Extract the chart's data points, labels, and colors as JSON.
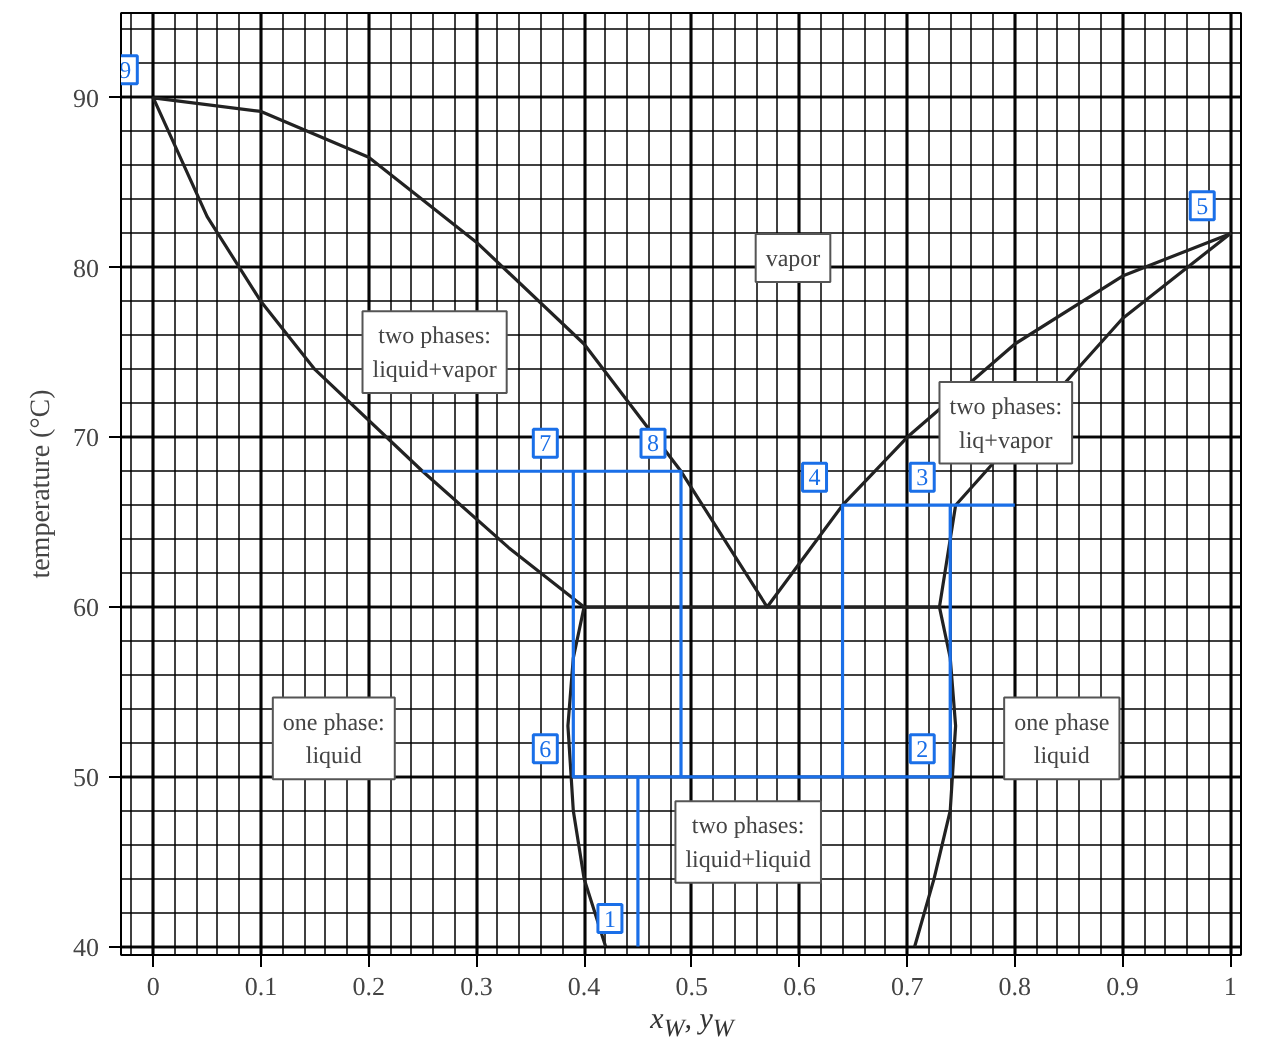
{
  "chart_data": {
    "type": "line",
    "xlabel": "x$_{W}$, y$_{W}$",
    "ylabel": "temperature (°C)",
    "xlim": [
      -0.03,
      1.01
    ],
    "ylim": [
      39.5,
      95
    ],
    "xticks": [
      0,
      0.1,
      0.2,
      0.3,
      0.4,
      0.5,
      0.6,
      0.7,
      0.8,
      0.9,
      1
    ],
    "yticks": [
      40,
      50,
      60,
      70,
      80,
      90
    ],
    "grid": true,
    "series": [
      {
        "type": "line",
        "color": "#222222",
        "x": [
          0.42,
          0.4,
          0.39,
          0.385,
          0.39,
          0.4,
          0.33,
          0.25,
          0.15,
          0.1,
          0.05,
          0,
          0.1,
          0.2,
          0.3,
          0.4,
          0.49,
          0.57,
          0.64,
          0.7,
          0.8,
          0.9,
          1.0,
          0.9,
          0.745,
          0.73,
          0.74,
          0.745,
          0.74,
          0.725,
          0.707
        ],
        "values": [
          40,
          44,
          48,
          53,
          57,
          60,
          63.5,
          68,
          74,
          78,
          83,
          90,
          89.2,
          86.5,
          81.5,
          75.5,
          68,
          60,
          66,
          70,
          75.5,
          79.5,
          82,
          77,
          66,
          60,
          57,
          53,
          48,
          44,
          40
        ]
      },
      {
        "type": "line",
        "color": "#222222",
        "x": [
          0.4,
          0.73
        ],
        "values": [
          60,
          60
        ]
      },
      {
        "type": "line",
        "color": "#1a6fe8",
        "x": [
          0.25,
          0.49,
          0.49,
          null,
          0.39,
          0.39,
          0.74,
          0.74,
          null,
          0.64,
          0.64,
          0.8,
          null,
          0.45,
          0.45
        ],
        "values": [
          68,
          68,
          50,
          null,
          68,
          50,
          50,
          66,
          null,
          50,
          66,
          66,
          null,
          40,
          50
        ]
      }
    ],
    "annotations": [
      "vapor",
      "two phases:\nliquid+vapor",
      "two phases:\nliq+vapor",
      "one phase:\nliquid",
      "one phase\nliquid",
      "two phases:\nliquid+liquid",
      {
        "text": "1",
        "x": 0.45,
        "y": 40
      },
      {
        "text": "2",
        "x": 0.74,
        "y": 50
      },
      {
        "text": "3",
        "x": 0.74,
        "y": 66
      },
      {
        "text": "4",
        "x": 0.64,
        "y": 66
      },
      {
        "text": "5",
        "x": 1.0,
        "y": 82
      },
      {
        "text": "6",
        "x": 0.39,
        "y": 50
      },
      {
        "text": "7",
        "x": 0.39,
        "y": 68
      },
      {
        "text": "8",
        "x": 0.49,
        "y": 68
      },
      {
        "text": "9",
        "x": 0,
        "y": 90
      }
    ]
  }
}
